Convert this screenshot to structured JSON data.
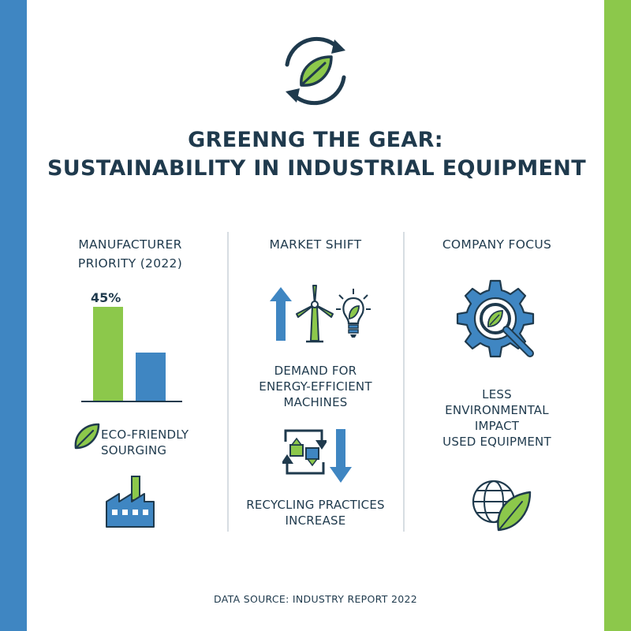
{
  "title": {
    "line1": "GREENNG THE GEAR:",
    "line2": "SUSTAINABILITY IN INDUSTRIAL EQUIPMENT"
  },
  "columns": {
    "left": {
      "heading_line1": "MANUFACTURER",
      "heading_line2": "PRIORITY (2022)",
      "bar_label": "45%",
      "caption_line1": "ECO-FRIENDLY",
      "caption_line2": "SOURGING"
    },
    "middle": {
      "heading": "MARKET SHIFT",
      "text1_line1": "DEMAND FOR",
      "text1_line2": "ENERGY-EFFICIENT",
      "text1_line3": "MACHINES",
      "text2_line1": "RECYCLING PRACTICES",
      "text2_line2": "INCREASE"
    },
    "right": {
      "heading": "COMPANY FOCUS",
      "text_line1": "LESS",
      "text_line2": "ENVIRONMENTAL",
      "text_line3": "IMPACT",
      "text_line4": "USED EQUIPMENT"
    }
  },
  "chart_data": {
    "type": "bar",
    "categories": [
      "",
      ""
    ],
    "values": [
      45,
      23
    ],
    "data_labels": [
      "45%",
      ""
    ],
    "colors": [
      "#8cc84b",
      "#3f86c2"
    ],
    "ylim": [
      0,
      55
    ],
    "grid": false
  },
  "footer": "DATA SOURCE: INDUSTRY REPORT 2022",
  "icons": {
    "logo": "recycle-leaf-icon",
    "caption": "leaf-icon",
    "factory": "factory-icon",
    "arrow_up": "arrow-up-icon",
    "wind": "wind-turbine-icon",
    "bulb": "lightbulb-leaf-icon",
    "recycle": "recycle-boxes-icon",
    "arrow_down": "arrow-down-icon",
    "gear": "gear-magnifier-icon",
    "globe": "globe-leaf-icon"
  },
  "colors": {
    "green": "#8cc84b",
    "blue": "#3f86c2",
    "navy": "#1f3a4d"
  }
}
